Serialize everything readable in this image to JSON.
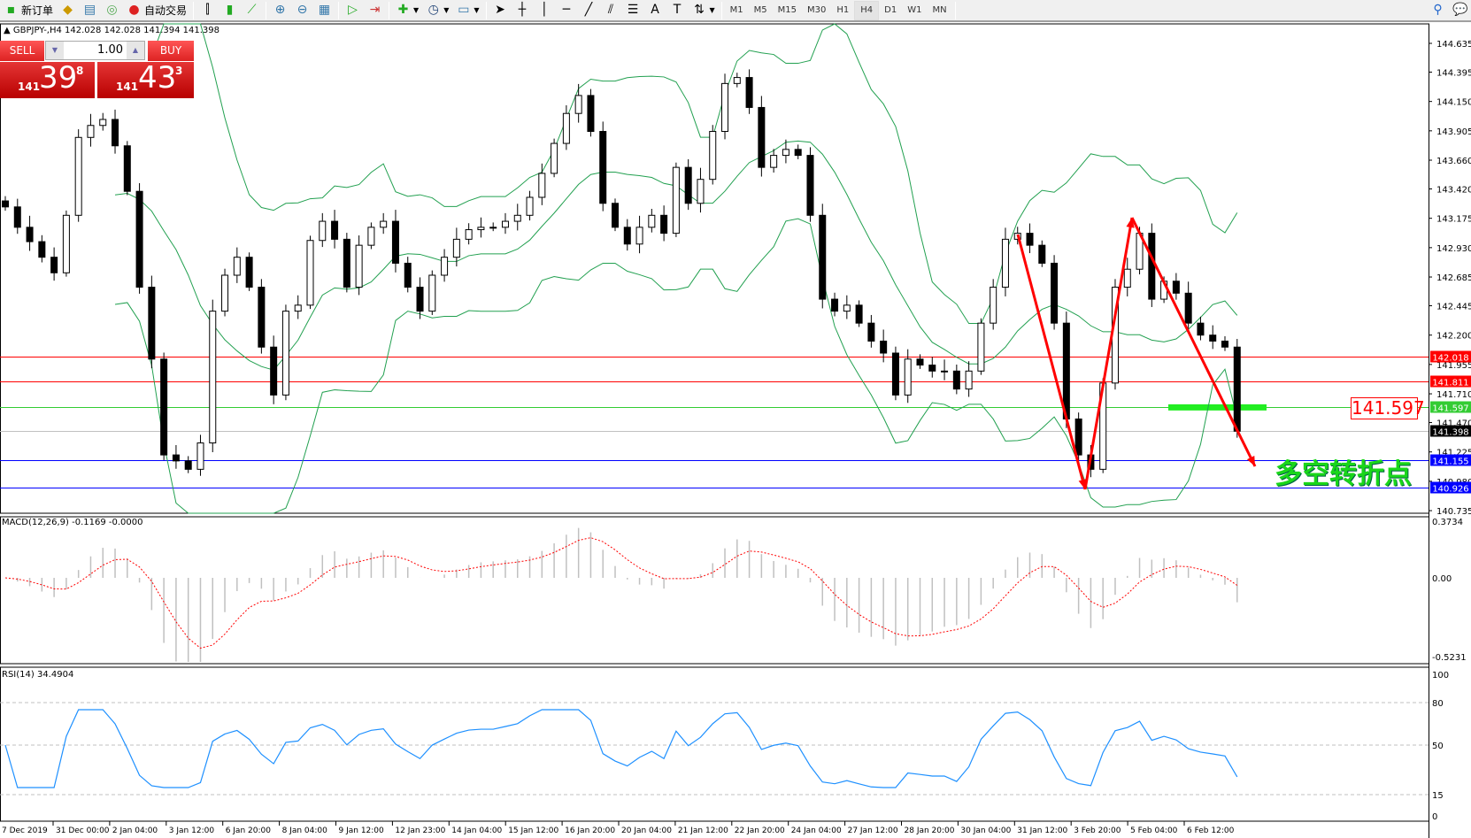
{
  "toolbar": {
    "new_order": "新订单",
    "auto_trading": "自动交易",
    "timeframes": [
      "M1",
      "M5",
      "M15",
      "M30",
      "H1",
      "H4",
      "D1",
      "W1",
      "MN"
    ],
    "active_timeframe": "H4"
  },
  "chart_header": "GBPJPY-,H4  142.028 142.028 141.394 141.398",
  "trade_panel": {
    "sell": "SELL",
    "buy": "BUY",
    "lot": "1.00",
    "bid": {
      "prefix": "141",
      "main": "39",
      "sup": "8"
    },
    "ask": {
      "prefix": "141",
      "main": "43",
      "sup": "3"
    }
  },
  "chart_data": {
    "type": "candlestick",
    "symbol": "GBPJPY-",
    "timeframe": "H4",
    "price_ticks": [
      144.635,
      144.395,
      144.15,
      143.905,
      143.66,
      143.42,
      143.175,
      142.93,
      142.685,
      142.445,
      142.2,
      141.955,
      141.71,
      141.47,
      141.225,
      140.98,
      140.735
    ],
    "ylim": [
      140.735,
      144.635
    ],
    "x_ticks": [
      "7 Dec 2019",
      "31 Dec 00:00",
      "2 Jan 04:00",
      "3 Jan 12:00",
      "6 Jan 20:00",
      "8 Jan 04:00",
      "9 Jan 12:00",
      "12 Jan 23:00",
      "14 Jan 04:00",
      "15 Jan 12:00",
      "16 Jan 20:00",
      "20 Jan 04:00",
      "21 Jan 12:00",
      "22 Jan 20:00",
      "24 Jan 04:00",
      "27 Jan 12:00",
      "28 Jan 20:00",
      "30 Jan 04:00",
      "31 Jan 12:00",
      "3 Feb 20:00",
      "5 Feb 04:00",
      "6 Feb 12:00"
    ],
    "closes": [
      143.27,
      143.1,
      142.98,
      142.85,
      142.72,
      143.2,
      143.85,
      143.95,
      144.0,
      143.78,
      143.4,
      142.6,
      142.0,
      141.2,
      141.15,
      141.08,
      141.3,
      142.4,
      142.7,
      142.85,
      142.6,
      142.1,
      141.7,
      142.4,
      142.45,
      142.99,
      143.15,
      143.0,
      142.6,
      142.95,
      143.1,
      143.15,
      142.8,
      142.6,
      142.4,
      142.7,
      142.85,
      143.0,
      143.08,
      143.1,
      143.1,
      143.15,
      143.2,
      143.35,
      143.55,
      143.8,
      144.05,
      144.2,
      143.9,
      143.3,
      143.1,
      142.96,
      143.1,
      143.2,
      143.05,
      143.6,
      143.3,
      143.5,
      143.9,
      144.3,
      144.35,
      144.1,
      143.6,
      143.7,
      143.75,
      143.7,
      143.2,
      142.5,
      142.4,
      142.45,
      142.3,
      142.15,
      142.05,
      141.7,
      142.0,
      141.95,
      141.9,
      141.9,
      141.75,
      141.9,
      142.3,
      142.6,
      143.0,
      143.05,
      142.95,
      142.8,
      142.3,
      141.5,
      141.2,
      141.08,
      141.8,
      142.6,
      142.75,
      143.05,
      142.5,
      142.65,
      142.55,
      142.3,
      142.2,
      142.15,
      142.1,
      141.398
    ],
    "levels": [
      {
        "price": "142.018",
        "color": "#ff0000"
      },
      {
        "price": "141.811",
        "color": "#ff0000"
      },
      {
        "price": "141.597",
        "color": "#33cc33"
      },
      {
        "price": "141.398",
        "color": "#000000",
        "line": "#c0c0c0"
      },
      {
        "price": "141.155",
        "color": "#0000ff"
      },
      {
        "price": "140.926",
        "color": "#0000ff"
      }
    ],
    "bollinger": {
      "color": "#22a050"
    },
    "annotation_label": "141.597",
    "annotation_text": "多空转折点",
    "macd": {
      "label": "MACD(12,26,9) -0.1169 -0.0000",
      "ticks": [
        "0.3734",
        "0.00",
        "-0.5231"
      ],
      "range": [
        -0.5231,
        0.3734
      ],
      "signal_color": "#ff0000",
      "hist_color": "#c0c0c0"
    },
    "rsi": {
      "label": "RSI(14) 34.4904",
      "ticks": [
        "100",
        "80",
        "50",
        "15",
        "0"
      ],
      "levels": [
        80,
        50,
        15
      ],
      "color": "#1e90ff"
    }
  }
}
